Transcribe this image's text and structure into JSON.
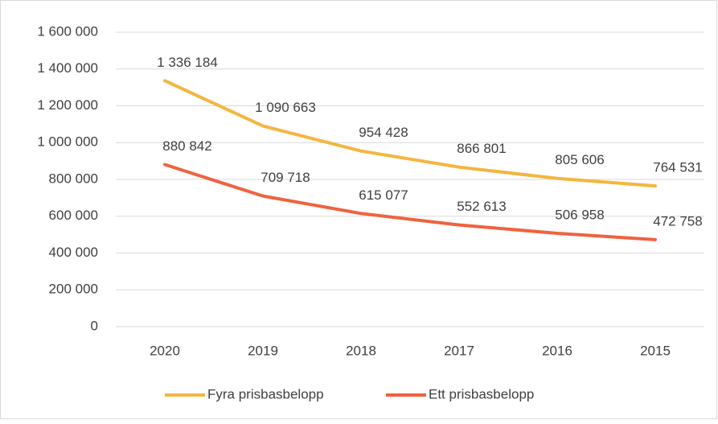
{
  "chart_data": {
    "type": "line",
    "categories": [
      "2020",
      "2019",
      "2018",
      "2017",
      "2016",
      "2015"
    ],
    "series": [
      {
        "name": "Fyra prisbasbelopp",
        "color": "#f4b63f",
        "values": [
          1336184,
          1090663,
          954428,
          866801,
          805606,
          764531
        ],
        "value_labels": [
          "1 336 184",
          "1 090 663",
          "954 428",
          "866 801",
          "805 606",
          "764 531"
        ]
      },
      {
        "name": "Ett prisbasbelopp",
        "color": "#f0623f",
        "values": [
          880842,
          709718,
          615077,
          552613,
          506958,
          472758
        ],
        "value_labels": [
          "880 842",
          "709 718",
          "615 077",
          "552 613",
          "506 958",
          "472 758"
        ]
      }
    ],
    "ylim": [
      0,
      1600000
    ],
    "yticks": [
      0,
      {
        "value": 200000,
        "label": "200 000"
      },
      {
        "value": 400000,
        "label": "400 000"
      },
      {
        "value": 600000,
        "label": "600 000"
      },
      {
        "value": 800000,
        "label": "800 000"
      },
      {
        "value": 1000000,
        "label": "1 000 000"
      },
      {
        "value": 1200000,
        "label": "1 200 000"
      },
      {
        "value": 1400000,
        "label": "1 400 000"
      },
      {
        "value": 1600000,
        "label": "1 600 000"
      }
    ],
    "grid": true,
    "legend": "bottom"
  }
}
